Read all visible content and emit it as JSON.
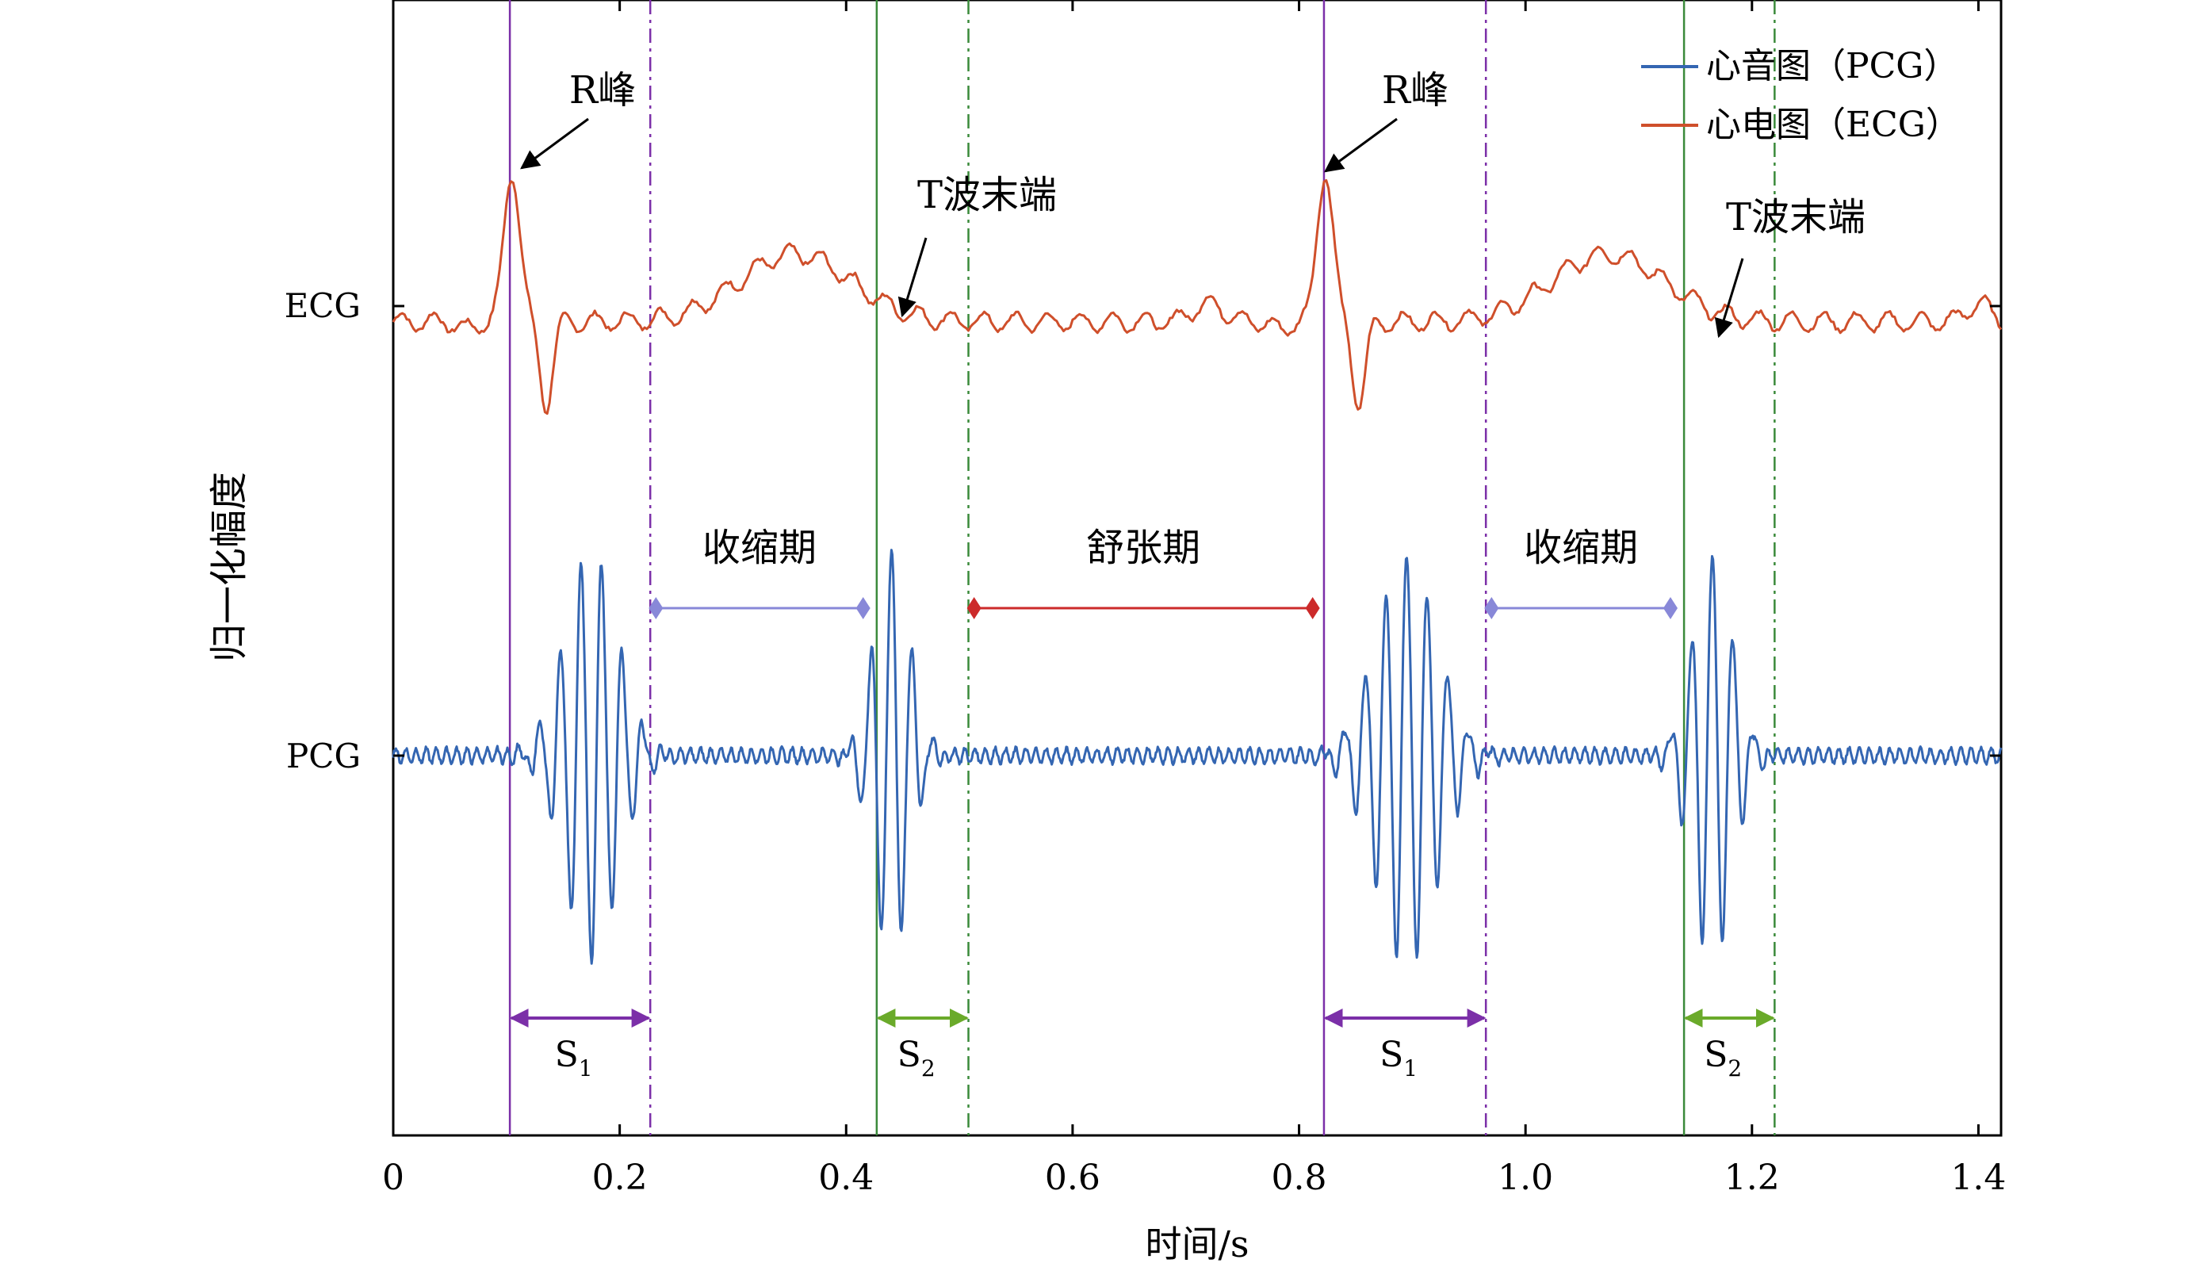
{
  "chart_data": {
    "type": "line",
    "xlabel": "时间/s",
    "ylabel": "归一化幅度",
    "xlim": [
      0,
      1.42
    ],
    "x_ticks": [
      0,
      0.2,
      0.4,
      0.6,
      0.8,
      1.0,
      1.2,
      1.4
    ],
    "x_tick_labels": [
      "0",
      "0.2",
      "0.4",
      "0.6",
      "0.8",
      "1.0",
      "1.2",
      "1.4"
    ],
    "y_tick_labels": [
      "ECG",
      "PCG"
    ],
    "grid": false,
    "legend_position": "top-right",
    "series": [
      {
        "name": "心音图（PCG）",
        "color": "#3466b2",
        "baseline": "PCG",
        "bursts": [
          {
            "label": "S1",
            "center": 0.175,
            "halfwidth": 0.06,
            "amplitude": -1.0
          },
          {
            "label": "S2",
            "center": 0.44,
            "halfwidth": 0.04,
            "amplitude": 1.0
          },
          {
            "label": "S1",
            "center": 0.895,
            "halfwidth": 0.07,
            "amplitude": 1.0
          },
          {
            "label": "S2",
            "center": 1.165,
            "halfwidth": 0.045,
            "amplitude": 1.0
          }
        ]
      },
      {
        "name": "心电图（ECG）",
        "color": "#cf4f2b",
        "baseline": "ECG",
        "r_peaks": [
          0.105,
          0.823
        ],
        "t_wave_ends": [
          0.45,
          1.17
        ]
      }
    ],
    "vertical_lines": [
      {
        "x": 0.103,
        "style": "solid",
        "color": "#7b2fa8"
      },
      {
        "x": 0.227,
        "style": "dashdot",
        "color": "#7b2fa8"
      },
      {
        "x": 0.427,
        "style": "solid",
        "color": "#3a8a3a"
      },
      {
        "x": 0.508,
        "style": "dashdot",
        "color": "#3a8a3a"
      },
      {
        "x": 0.822,
        "style": "solid",
        "color": "#7b2fa8"
      },
      {
        "x": 0.965,
        "style": "dashdot",
        "color": "#7b2fa8"
      },
      {
        "x": 1.14,
        "style": "solid",
        "color": "#3a8a3a"
      },
      {
        "x": 1.22,
        "style": "dashdot",
        "color": "#3a8a3a"
      }
    ],
    "intervals": [
      {
        "label": "收缩期",
        "x0": 0.232,
        "x1": 0.415,
        "color": "#8888d8"
      },
      {
        "label": "舒张期",
        "x0": 0.513,
        "x1": 0.812,
        "color": "#cc2a2a"
      },
      {
        "label": "收缩期",
        "x0": 0.97,
        "x1": 1.128,
        "color": "#8888d8"
      }
    ],
    "sound_spans": [
      {
        "label": "S",
        "sub": "1",
        "x0": 0.103,
        "x1": 0.227,
        "color": "#7b2fa8"
      },
      {
        "label": "S",
        "sub": "2",
        "x0": 0.427,
        "x1": 0.508,
        "color": "#6aaa2a"
      },
      {
        "label": "S",
        "sub": "1",
        "x0": 0.822,
        "x1": 0.965,
        "color": "#7b2fa8"
      },
      {
        "label": "S",
        "sub": "2",
        "x0": 1.14,
        "x1": 1.22,
        "color": "#6aaa2a"
      }
    ],
    "annotations": [
      {
        "text": "R峰",
        "target_x": 0.105
      },
      {
        "text": "T波末端",
        "target_x": 0.45
      },
      {
        "text": "R峰",
        "target_x": 0.823
      },
      {
        "text": "T波末端",
        "target_x": 1.17
      }
    ]
  }
}
